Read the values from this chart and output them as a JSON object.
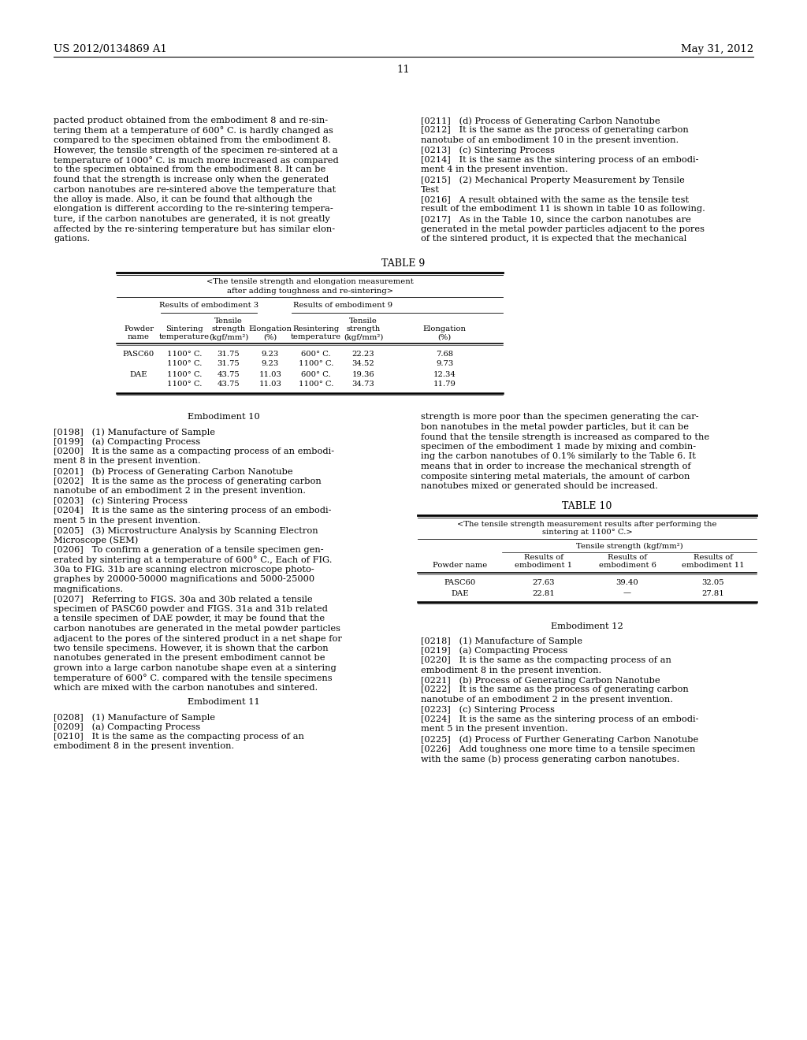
{
  "background_color": "#ffffff",
  "header_left": "US 2012/0134869 A1",
  "header_right": "May 31, 2012",
  "page_number": "11",
  "left_col_text": [
    "pacted product obtained from the embodiment 8 and re-sin-",
    "tering them at a temperature of 600° C. is hardly changed as",
    "compared to the specimen obtained from the embodiment 8.",
    "However, the tensile strength of the specimen re-sintered at a",
    "temperature of 1000° C. is much more increased as compared",
    "to the specimen obtained from the embodiment 8. It can be",
    "found that the strength is increase only when the generated",
    "carbon nanotubes are re-sintered above the temperature that",
    "the alloy is made. Also, it can be found that although the",
    "elongation is different according to the re-sintering tempera-",
    "ture, if the carbon nanotubes are generated, it is not greatly",
    "affected by the re-sintering temperature but has similar elon-",
    "gations."
  ],
  "right_col_text_top": [
    "[0211]   (d) Process of Generating Carbon Nanotube",
    "[0212]   It is the same as the process of generating carbon",
    "nanotube of an embodiment 10 in the present invention.",
    "[0213]   (c) Sintering Process",
    "[0214]   It is the same as the sintering process of an embodi-",
    "ment 4 in the present invention.",
    "[0215]   (2) Mechanical Property Measurement by Tensile",
    "Test",
    "[0216]   A result obtained with the same as the tensile test",
    "result of the embodiment 11 is shown in table 10 as following.",
    "[0217]   As in the Table 10, since the carbon nanotubes are",
    "generated in the metal powder particles adjacent to the pores",
    "of the sintered product, it is expected that the mechanical"
  ],
  "table9_title": "TABLE 9",
  "table9_subtitle1": "<The tensile strength and elongation measurement",
  "table9_subtitle2": "after adding toughness and re-sintering>",
  "table9_group1": "Results of embodiment 3",
  "table9_group2": "Results of embodiment 9",
  "table9_col_headers_line1": [
    "",
    "",
    "Tensile",
    "",
    "",
    "Tensile",
    ""
  ],
  "table9_col_headers_line2": [
    "Powder",
    "Sintering",
    "strength",
    "Elongation",
    "Resintering",
    "strength",
    "Elongation"
  ],
  "table9_col_headers_line3": [
    "name",
    "temperature",
    "(kgf/mm²)",
    "(%)",
    "temperature",
    "(kgf/mm²)",
    "(%)"
  ],
  "table9_data": [
    [
      "PASC60",
      "1100° C.",
      "31.75",
      "9.23",
      "600° C.",
      "22.23",
      "7.68"
    ],
    [
      "",
      "1100° C.",
      "31.75",
      "9.23",
      "1100° C.",
      "34.52",
      "9.73"
    ],
    [
      "DAE",
      "1100° C.",
      "43.75",
      "11.03",
      "600° C.",
      "19.36",
      "12.34"
    ],
    [
      "",
      "1100° C.",
      "43.75",
      "11.03",
      "1100° C.",
      "34.73",
      "11.79"
    ]
  ],
  "left_col_emb10": [
    "Embodiment 10",
    "",
    "[0198]   (1) Manufacture of Sample",
    "[0199]   (a) Compacting Process",
    "[0200]   It is the same as a compacting process of an embodi-",
    "ment 8 in the present invention.",
    "[0201]   (b) Process of Generating Carbon Nanotube",
    "[0202]   It is the same as the process of generating carbon",
    "nanotube of an embodiment 2 in the present invention.",
    "[0203]   (c) Sintering Process",
    "[0204]   It is the same as the sintering process of an embodi-",
    "ment 5 in the present invention.",
    "[0205]   (3) Microstructure Analysis by Scanning Electron",
    "Microscope (SEM)",
    "[0206]   To confirm a generation of a tensile specimen gen-",
    "erated by sintering at a temperature of 600° C., Each of FIG.",
    "30a to FIG. 31b are scanning electron microscope photo-",
    "graphes by 20000-50000 magnifications and 5000-25000",
    "magnifications.",
    "[0207]   Referring to FIGS. 30a and 30b related a tensile",
    "specimen of PASC60 powder and FIGS. 31a and 31b related",
    "a tensile specimen of DAE powder, it may be found that the",
    "carbon nanotubes are generated in the metal powder particles",
    "adjacent to the pores of the sintered product in a net shape for",
    "two tensile specimens. However, it is shown that the carbon",
    "nanotubes generated in the present embodiment cannot be",
    "grown into a large carbon nanotube shape even at a sintering",
    "temperature of 600° C. compared with the tensile specimens",
    "which are mixed with the carbon nanotubes and sintered."
  ],
  "left_col_emb11": [
    "Embodiment 11",
    "",
    "[0208]   (1) Manufacture of Sample",
    "[0209]   (a) Compacting Process",
    "[0210]   It is the same as the compacting process of an",
    "embodiment 8 in the present invention."
  ],
  "right_col_text_bottom": [
    "strength is more poor than the specimen generating the car-",
    "bon nanotubes in the metal powder particles, but it can be",
    "found that the tensile strength is increased as compared to the",
    "specimen of the embodiment 1 made by mixing and combin-",
    "ing the carbon nanotubes of 0.1% similarly to the Table 6. It",
    "means that in order to increase the mechanical strength of",
    "composite sintering metal materials, the amount of carbon",
    "nanotubes mixed or generated should be increased."
  ],
  "table10_title": "TABLE 10",
  "table10_subtitle1": "<The tensile strength measurement results after performing the",
  "table10_subtitle2": "sintering at 1100° C.>",
  "table10_col_header": "Tensile strength (kgf/mm²)",
  "table10_subheaders_line1": [
    "",
    "Results of",
    "Results of",
    "Results of"
  ],
  "table10_subheaders_line2": [
    "Powder name",
    "embodiment 1",
    "embodiment 6",
    "embodiment 11"
  ],
  "table10_data": [
    [
      "PASC60",
      "27.63",
      "39.40",
      "32.05"
    ],
    [
      "DAE",
      "22.81",
      "—",
      "27.81"
    ]
  ],
  "right_col_emb12": [
    "Embodiment 12",
    "",
    "[0218]   (1) Manufacture of Sample",
    "[0219]   (a) Compacting Process",
    "[0220]   It is the same as the compacting process of an",
    "embodiment 8 in the present invention.",
    "[0221]   (b) Process of Generating Carbon Nanotube",
    "[0222]   It is the same as the process of generating carbon",
    "nanotube of an embodiment 2 in the present invention.",
    "[0223]   (c) Sintering Process",
    "[0224]   It is the same as the sintering process of an embodi-",
    "ment 5 in the present invention.",
    "[0225]   (d) Process of Further Generating Carbon Nanotube",
    "[0226]   Add toughness one more time to a tensile specimen",
    "with the same (b) process generating carbon nanotubes."
  ]
}
